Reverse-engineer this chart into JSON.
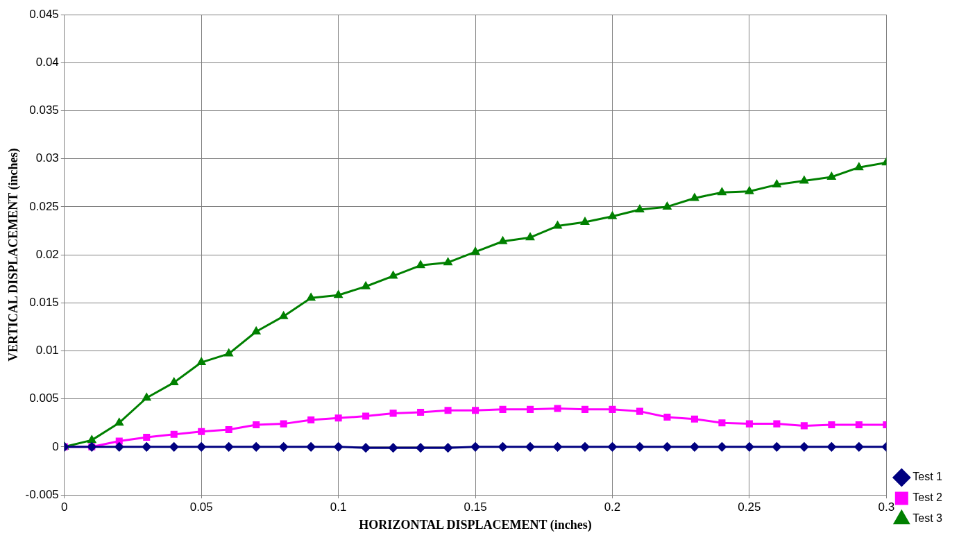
{
  "chart_data": {
    "type": "line",
    "xlabel": "HORIZONTAL DISPLACEMENT (inches)",
    "ylabel": "VERTICAL DISPLACEMENT (inches)",
    "x": [
      0,
      0.01,
      0.02,
      0.03,
      0.04,
      0.05,
      0.06,
      0.07,
      0.08,
      0.09,
      0.1,
      0.11,
      0.12,
      0.13,
      0.14,
      0.15,
      0.16,
      0.17,
      0.18,
      0.19,
      0.2,
      0.21,
      0.22,
      0.23,
      0.24,
      0.25,
      0.26,
      0.27,
      0.28,
      0.29,
      0.3
    ],
    "series": [
      {
        "name": "Test 1",
        "color": "#000080",
        "marker": "diamond",
        "values": [
          0,
          0,
          0,
          0,
          0,
          0,
          0,
          0,
          0,
          0,
          0,
          -0.0001,
          -0.0001,
          -0.0001,
          -0.0001,
          0,
          0,
          0,
          0,
          0,
          0,
          0,
          0,
          0,
          0,
          0,
          0,
          0,
          0,
          0,
          0
        ]
      },
      {
        "name": "Test 2",
        "color": "#ff00ff",
        "marker": "square",
        "values": [
          0,
          0,
          0.0006,
          0.001,
          0.0013,
          0.0016,
          0.0018,
          0.0023,
          0.0024,
          0.0028,
          0.003,
          0.0032,
          0.0035,
          0.0036,
          0.0038,
          0.0038,
          0.0039,
          0.0039,
          0.004,
          0.0039,
          0.0039,
          0.0037,
          0.0031,
          0.0029,
          0.0025,
          0.0024,
          0.0024,
          0.0022,
          0.0023,
          0.0023,
          0.0023
        ]
      },
      {
        "name": "Test 3",
        "color": "#008000",
        "marker": "triangle",
        "values": [
          0,
          0.0007,
          0.0025,
          0.0051,
          0.0067,
          0.0088,
          0.0097,
          0.012,
          0.0136,
          0.0155,
          0.0158,
          0.0167,
          0.0178,
          0.0189,
          0.0192,
          0.0203,
          0.0214,
          0.0218,
          0.023,
          0.0234,
          0.024,
          0.0247,
          0.025,
          0.0259,
          0.0265,
          0.0266,
          0.0273,
          0.0277,
          0.0281,
          0.0291,
          0.0296
        ]
      }
    ],
    "xlim": [
      0,
      0.3
    ],
    "xticks": [
      0,
      0.05,
      0.1,
      0.15,
      0.2,
      0.25,
      0.3
    ],
    "ylim": [
      -0.005,
      0.045
    ],
    "yticks": [
      -0.005,
      0,
      0.005,
      0.01,
      0.015,
      0.02,
      0.025,
      0.03,
      0.035,
      0.04,
      0.045
    ],
    "grid": true,
    "legend": "bottom right",
    "line_style": "solid"
  }
}
